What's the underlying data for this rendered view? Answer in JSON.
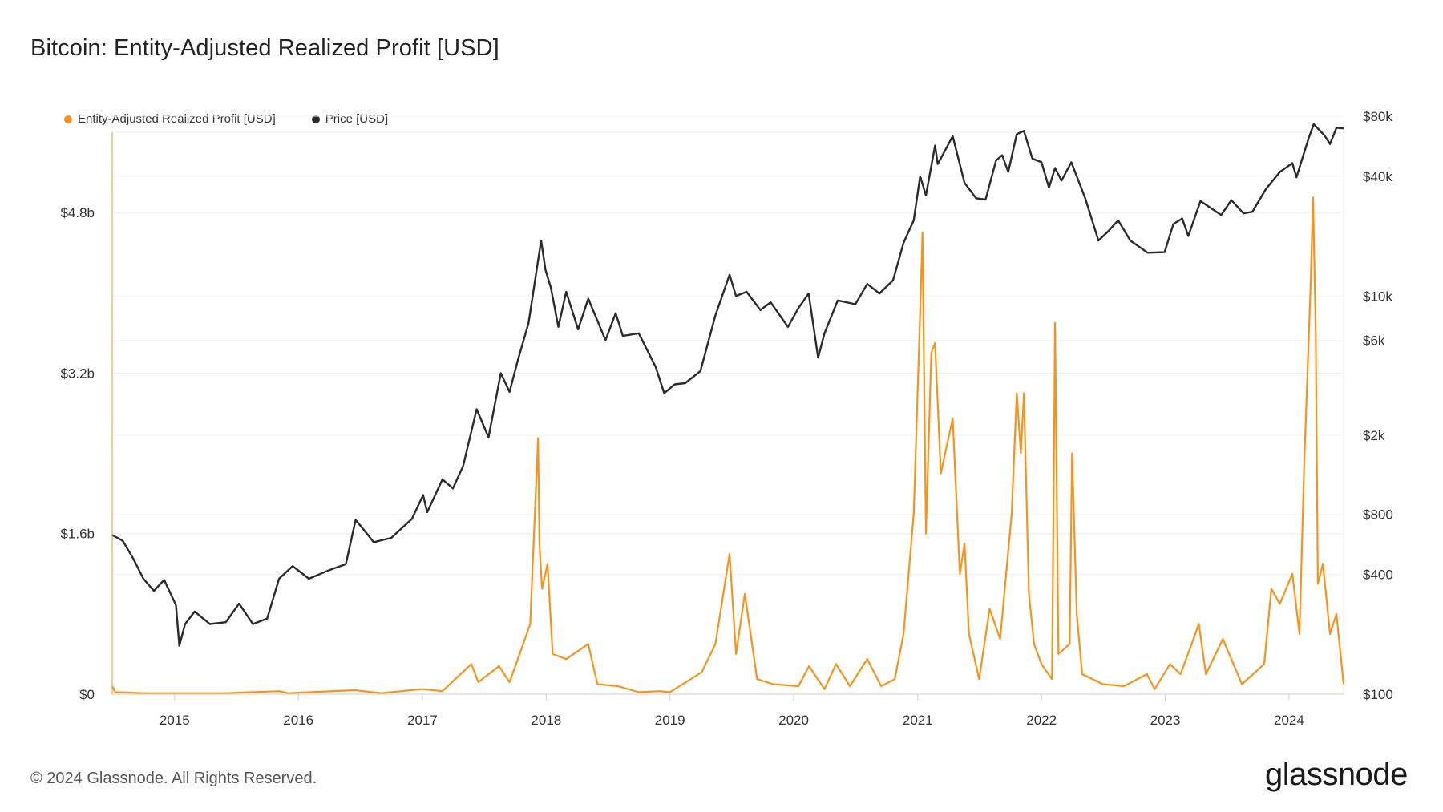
{
  "page": {
    "title": "Bitcoin: Entity-Adjusted Realized Profit [USD]",
    "copyright": "© 2024 Glassnode. All Rights Reserved.",
    "brand": "glassnode"
  },
  "colors": {
    "profit": "#f7931a",
    "price": "#2b2b2b",
    "grid": "#ececec",
    "axis": "#cfcfcf"
  },
  "chart_data": {
    "type": "line",
    "title": "Bitcoin: Entity-Adjusted Realized Profit [USD]",
    "x_range": [
      "2014-07-01",
      "2024-06-10"
    ],
    "x_ticks": [
      "2015",
      "2016",
      "2017",
      "2018",
      "2019",
      "2020",
      "2021",
      "2022",
      "2023",
      "2024"
    ],
    "legend_position": "top-left",
    "grid": true,
    "left_axis": {
      "label": "",
      "ticks": [
        "$0",
        "$1.6b",
        "$3.2b",
        "$4.8b"
      ],
      "tick_values": [
        0,
        1.6,
        3.2,
        4.8
      ],
      "units": "billion USD",
      "range": [
        0,
        5.6
      ]
    },
    "right_axis": {
      "label": "",
      "scale": "log",
      "ticks": [
        "$100",
        "$400",
        "$800",
        "$2k",
        "$6k",
        "$10k",
        "$40k",
        "$80k"
      ],
      "tick_values": [
        100,
        400,
        800,
        2000,
        6000,
        10000,
        40000,
        80000
      ],
      "range": [
        100,
        80000
      ]
    },
    "series": [
      {
        "name": "Entity-Adjusted Realized Profit [USD]",
        "axis": "left",
        "units": "billion USD",
        "points": [
          [
            "2014-07-01",
            0.08
          ],
          [
            "2014-07-10",
            0.02
          ],
          [
            "2014-10-01",
            0.01
          ],
          [
            "2015-01-15",
            0.01
          ],
          [
            "2015-06-01",
            0.01
          ],
          [
            "2015-11-05",
            0.03
          ],
          [
            "2015-12-01",
            0.01
          ],
          [
            "2016-06-15",
            0.04
          ],
          [
            "2016-09-01",
            0.01
          ],
          [
            "2017-01-01",
            0.05
          ],
          [
            "2017-03-01",
            0.03
          ],
          [
            "2017-05-25",
            0.3
          ],
          [
            "2017-06-15",
            0.12
          ],
          [
            "2017-08-15",
            0.28
          ],
          [
            "2017-09-15",
            0.12
          ],
          [
            "2017-10-20",
            0.45
          ],
          [
            "2017-11-15",
            0.7
          ],
          [
            "2017-12-08",
            2.55
          ],
          [
            "2017-12-12",
            1.5
          ],
          [
            "2017-12-20",
            1.05
          ],
          [
            "2018-01-05",
            1.3
          ],
          [
            "2018-01-20",
            0.4
          ],
          [
            "2018-03-01",
            0.35
          ],
          [
            "2018-05-05",
            0.5
          ],
          [
            "2018-06-01",
            0.1
          ],
          [
            "2018-08-01",
            0.08
          ],
          [
            "2018-10-01",
            0.02
          ],
          [
            "2018-12-01",
            0.03
          ],
          [
            "2019-01-01",
            0.02
          ],
          [
            "2019-04-05",
            0.22
          ],
          [
            "2019-05-15",
            0.5
          ],
          [
            "2019-06-26",
            1.4
          ],
          [
            "2019-07-15",
            0.4
          ],
          [
            "2019-08-10",
            1.0
          ],
          [
            "2019-09-15",
            0.15
          ],
          [
            "2019-11-01",
            0.1
          ],
          [
            "2020-01-15",
            0.08
          ],
          [
            "2020-02-15",
            0.28
          ],
          [
            "2020-04-01",
            0.05
          ],
          [
            "2020-05-05",
            0.3
          ],
          [
            "2020-06-15",
            0.08
          ],
          [
            "2020-08-05",
            0.35
          ],
          [
            "2020-09-15",
            0.08
          ],
          [
            "2020-10-25",
            0.15
          ],
          [
            "2020-11-20",
            0.6
          ],
          [
            "2020-12-20",
            1.8
          ],
          [
            "2021-01-08",
            3.8
          ],
          [
            "2021-01-15",
            4.6
          ],
          [
            "2021-01-25",
            1.6
          ],
          [
            "2021-02-10",
            3.4
          ],
          [
            "2021-02-21",
            3.5
          ],
          [
            "2021-03-10",
            2.2
          ],
          [
            "2021-04-14",
            2.75
          ],
          [
            "2021-05-05",
            1.2
          ],
          [
            "2021-05-19",
            1.5
          ],
          [
            "2021-06-01",
            0.6
          ],
          [
            "2021-07-01",
            0.15
          ],
          [
            "2021-08-01",
            0.85
          ],
          [
            "2021-09-01",
            0.55
          ],
          [
            "2021-10-05",
            1.8
          ],
          [
            "2021-10-20",
            3.0
          ],
          [
            "2021-11-01",
            2.4
          ],
          [
            "2021-11-10",
            3.0
          ],
          [
            "2021-11-25",
            1.0
          ],
          [
            "2021-12-10",
            0.5
          ],
          [
            "2022-01-01",
            0.3
          ],
          [
            "2022-02-01",
            0.15
          ],
          [
            "2022-02-10",
            3.7
          ],
          [
            "2022-02-20",
            0.4
          ],
          [
            "2022-03-25",
            0.5
          ],
          [
            "2022-04-01",
            2.4
          ],
          [
            "2022-04-15",
            0.8
          ],
          [
            "2022-05-01",
            0.2
          ],
          [
            "2022-07-01",
            0.1
          ],
          [
            "2022-09-01",
            0.08
          ],
          [
            "2022-11-08",
            0.2
          ],
          [
            "2022-12-01",
            0.05
          ],
          [
            "2023-01-15",
            0.3
          ],
          [
            "2023-02-15",
            0.2
          ],
          [
            "2023-03-20",
            0.5
          ],
          [
            "2023-04-10",
            0.7
          ],
          [
            "2023-05-01",
            0.2
          ],
          [
            "2023-06-20",
            0.55
          ],
          [
            "2023-07-15",
            0.35
          ],
          [
            "2023-08-15",
            0.1
          ],
          [
            "2023-10-20",
            0.3
          ],
          [
            "2023-11-10",
            1.05
          ],
          [
            "2023-12-05",
            0.9
          ],
          [
            "2024-01-11",
            1.2
          ],
          [
            "2024-02-01",
            0.6
          ],
          [
            "2024-02-15",
            2.3
          ],
          [
            "2024-03-05",
            4.1
          ],
          [
            "2024-03-12",
            4.95
          ],
          [
            "2024-03-20",
            3.6
          ],
          [
            "2024-03-26",
            1.1
          ],
          [
            "2024-04-10",
            1.3
          ],
          [
            "2024-05-01",
            0.6
          ],
          [
            "2024-05-20",
            0.8
          ],
          [
            "2024-06-10",
            0.1
          ]
        ]
      },
      {
        "name": "Price [USD]",
        "axis": "right",
        "units": "USD",
        "points": [
          [
            "2014-07-01",
            630
          ],
          [
            "2014-08-01",
            590
          ],
          [
            "2014-09-01",
            480
          ],
          [
            "2014-10-01",
            380
          ],
          [
            "2014-11-01",
            330
          ],
          [
            "2014-12-01",
            375
          ],
          [
            "2015-01-05",
            280
          ],
          [
            "2015-01-15",
            175
          ],
          [
            "2015-02-01",
            225
          ],
          [
            "2015-03-01",
            260
          ],
          [
            "2015-04-15",
            225
          ],
          [
            "2015-06-01",
            230
          ],
          [
            "2015-07-10",
            285
          ],
          [
            "2015-08-20",
            225
          ],
          [
            "2015-10-01",
            240
          ],
          [
            "2015-11-05",
            380
          ],
          [
            "2015-12-15",
            440
          ],
          [
            "2016-02-01",
            380
          ],
          [
            "2016-04-01",
            420
          ],
          [
            "2016-05-20",
            450
          ],
          [
            "2016-06-18",
            750
          ],
          [
            "2016-07-15",
            660
          ],
          [
            "2016-08-10",
            580
          ],
          [
            "2016-10-01",
            610
          ],
          [
            "2016-12-01",
            760
          ],
          [
            "2017-01-03",
            1000
          ],
          [
            "2017-01-15",
            820
          ],
          [
            "2017-03-01",
            1200
          ],
          [
            "2017-04-01",
            1080
          ],
          [
            "2017-05-01",
            1400
          ],
          [
            "2017-06-10",
            2700
          ],
          [
            "2017-07-15",
            1950
          ],
          [
            "2017-08-20",
            4100
          ],
          [
            "2017-09-15",
            3300
          ],
          [
            "2017-10-10",
            4800
          ],
          [
            "2017-11-10",
            7300
          ],
          [
            "2017-12-17",
            19000
          ],
          [
            "2017-12-30",
            13500
          ],
          [
            "2018-01-15",
            11000
          ],
          [
            "2018-02-06",
            7000
          ],
          [
            "2018-03-01",
            10500
          ],
          [
            "2018-04-05",
            6800
          ],
          [
            "2018-05-05",
            9700
          ],
          [
            "2018-06-25",
            6000
          ],
          [
            "2018-07-25",
            8200
          ],
          [
            "2018-08-15",
            6300
          ],
          [
            "2018-10-01",
            6500
          ],
          [
            "2018-11-20",
            4400
          ],
          [
            "2018-12-15",
            3250
          ],
          [
            "2019-01-15",
            3600
          ],
          [
            "2019-02-15",
            3650
          ],
          [
            "2019-04-01",
            4200
          ],
          [
            "2019-05-15",
            8000
          ],
          [
            "2019-06-26",
            12800
          ],
          [
            "2019-07-15",
            10000
          ],
          [
            "2019-08-15",
            10500
          ],
          [
            "2019-09-25",
            8500
          ],
          [
            "2019-10-25",
            9300
          ],
          [
            "2019-12-15",
            7000
          ],
          [
            "2020-01-15",
            8700
          ],
          [
            "2020-02-14",
            10300
          ],
          [
            "2020-03-13",
            4900
          ],
          [
            "2020-04-01",
            6500
          ],
          [
            "2020-05-10",
            9500
          ],
          [
            "2020-07-01",
            9100
          ],
          [
            "2020-08-05",
            11500
          ],
          [
            "2020-09-10",
            10300
          ],
          [
            "2020-10-20",
            12000
          ],
          [
            "2020-11-20",
            18500
          ],
          [
            "2020-12-20",
            24000
          ],
          [
            "2021-01-08",
            40000
          ],
          [
            "2021-01-25",
            32000
          ],
          [
            "2021-02-21",
            57000
          ],
          [
            "2021-03-01",
            46000
          ],
          [
            "2021-04-14",
            63500
          ],
          [
            "2021-05-19",
            37000
          ],
          [
            "2021-06-22",
            31000
          ],
          [
            "2021-07-20",
            30500
          ],
          [
            "2021-08-20",
            48000
          ],
          [
            "2021-09-07",
            51000
          ],
          [
            "2021-09-25",
            42000
          ],
          [
            "2021-10-20",
            65000
          ],
          [
            "2021-11-10",
            67500
          ],
          [
            "2021-12-05",
            49000
          ],
          [
            "2022-01-01",
            47000
          ],
          [
            "2022-01-23",
            35000
          ],
          [
            "2022-02-10",
            44000
          ],
          [
            "2022-03-01",
            38000
          ],
          [
            "2022-03-30",
            47000
          ],
          [
            "2022-05-10",
            31000
          ],
          [
            "2022-06-18",
            19000
          ],
          [
            "2022-07-15",
            21000
          ],
          [
            "2022-08-15",
            24000
          ],
          [
            "2022-09-20",
            19000
          ],
          [
            "2022-11-10",
            16500
          ],
          [
            "2022-12-30",
            16600
          ],
          [
            "2023-01-25",
            23000
          ],
          [
            "2023-02-20",
            24500
          ],
          [
            "2023-03-10",
            20000
          ],
          [
            "2023-04-15",
            30000
          ],
          [
            "2023-06-15",
            25500
          ],
          [
            "2023-07-15",
            30300
          ],
          [
            "2023-08-20",
            26000
          ],
          [
            "2023-09-15",
            26500
          ],
          [
            "2023-10-25",
            34500
          ],
          [
            "2023-12-05",
            42000
          ],
          [
            "2024-01-11",
            46500
          ],
          [
            "2024-01-23",
            39500
          ],
          [
            "2024-02-28",
            62000
          ],
          [
            "2024-03-14",
            73000
          ],
          [
            "2024-04-15",
            64000
          ],
          [
            "2024-05-01",
            58000
          ],
          [
            "2024-05-20",
            70000
          ],
          [
            "2024-06-10",
            69500
          ]
        ]
      }
    ]
  }
}
